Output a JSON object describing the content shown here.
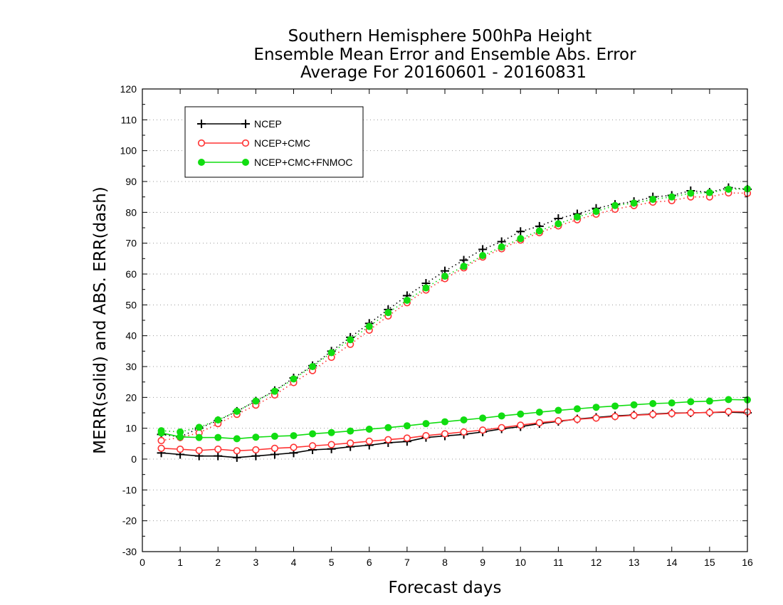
{
  "chart_data": {
    "type": "line",
    "title": [
      "Southern Hemisphere 500hPa Height",
      "Ensemble Mean Error and Ensemble Abs. Error",
      "Average For 20160601 - 20160831"
    ],
    "xlabel": "Forecast days",
    "ylabel": "MERR(solid) and ABS. ERR(dash)",
    "xlim": [
      0,
      16
    ],
    "ylim": [
      -30,
      120
    ],
    "xticks": [
      0,
      1,
      2,
      3,
      4,
      5,
      6,
      7,
      8,
      9,
      10,
      11,
      12,
      13,
      14,
      15,
      16
    ],
    "yticks": [
      -30,
      -20,
      -10,
      0,
      10,
      20,
      30,
      40,
      50,
      60,
      70,
      80,
      90,
      100,
      110,
      120
    ],
    "grid": "horizontal dotted",
    "legend": "top-left",
    "x": [
      0.5,
      1,
      1.5,
      2,
      2.5,
      3,
      3.5,
      4,
      4.5,
      5,
      5.5,
      6,
      6.5,
      7,
      7.5,
      8,
      8.5,
      9,
      9.5,
      10,
      10.5,
      11,
      11.5,
      12,
      12.5,
      13,
      13.5,
      14,
      14.5,
      15,
      15.5,
      16
    ],
    "series": [
      {
        "name": "NCEP",
        "color": "#000000",
        "marker": "plus",
        "merr": [
          2,
          1.5,
          1,
          1,
          0.5,
          1,
          1.5,
          2,
          3,
          3.3,
          4,
          4.5,
          5.3,
          5.7,
          7,
          7.5,
          8,
          8.8,
          9.8,
          10.5,
          11.5,
          12.2,
          13,
          13.5,
          14,
          14.3,
          14.6,
          14.9,
          15,
          15.1,
          15.2,
          15
        ],
        "abs_err": [
          8,
          7.2,
          10,
          12.5,
          15.5,
          18.8,
          22.2,
          26.3,
          30.3,
          35,
          39.5,
          44,
          48.5,
          53,
          57,
          61,
          64.5,
          68,
          70.5,
          73.8,
          75.5,
          78,
          79.5,
          81.3,
          82.6,
          83.5,
          85,
          85.5,
          87,
          86.5,
          88,
          87.5
        ]
      },
      {
        "name": "NCEP+CMC",
        "color": "#ff3333",
        "marker": "circle-open",
        "merr": [
          3.5,
          3.2,
          2.8,
          3.2,
          2.7,
          3,
          3.5,
          3.8,
          4.3,
          4.7,
          5.2,
          5.8,
          6.3,
          6.8,
          7.6,
          8.2,
          8.8,
          9.4,
          10.2,
          11,
          11.8,
          12.4,
          12.9,
          13.3,
          13.8,
          14.2,
          14.5,
          14.8,
          15,
          15.1,
          15.4,
          15.3
        ],
        "abs_err": [
          6,
          7,
          8.5,
          11.5,
          14.5,
          17.5,
          20.8,
          24.8,
          28.7,
          33,
          37.2,
          41.8,
          46.4,
          50.7,
          54.8,
          58.5,
          62,
          65.5,
          68.2,
          71,
          73.4,
          75.6,
          77.6,
          79.4,
          81,
          82.2,
          83.3,
          83.8,
          85,
          85,
          86.3,
          86.2
        ]
      },
      {
        "name": "NCEP+CMC+FNMOC",
        "color": "#11dd11",
        "marker": "circle-filled",
        "merr": [
          8.5,
          7.2,
          7,
          7,
          6.6,
          7.1,
          7.4,
          7.6,
          8.2,
          8.6,
          9.1,
          9.7,
          10.2,
          10.8,
          11.5,
          12.1,
          12.7,
          13.3,
          14,
          14.6,
          15.2,
          15.8,
          16.3,
          16.8,
          17.2,
          17.6,
          18,
          18.2,
          18.6,
          18.8,
          19.3,
          19.2
        ],
        "abs_err": [
          9.2,
          8.8,
          10.3,
          12.7,
          15.5,
          18.8,
          22,
          26,
          30,
          34.5,
          38.7,
          43,
          47.5,
          51.5,
          55.5,
          59.3,
          62.5,
          66,
          68.8,
          71.5,
          74,
          76.3,
          78.5,
          80.3,
          82.2,
          83,
          84.2,
          85,
          86.2,
          86.4,
          87.5,
          87.6
        ]
      }
    ]
  }
}
